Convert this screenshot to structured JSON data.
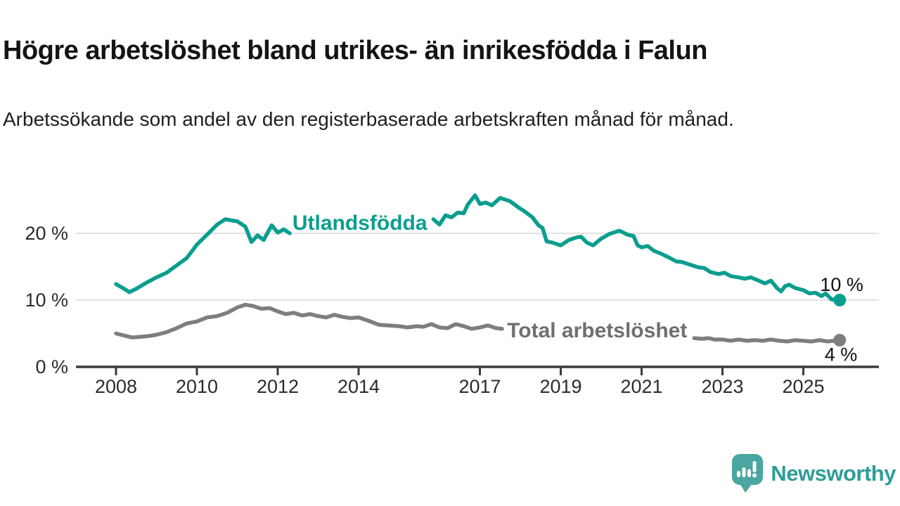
{
  "header": {
    "title": "Högre arbetslöshet bland utrikes- än inrikesfödda i Falun",
    "subtitle": "Arbetssökande som andel av den registerbaserade arbetskraften månad för månad."
  },
  "branding": {
    "name": "Newsworthy",
    "icon": "newsworthy-speech-bubble-bar-chart-icon",
    "icon_color": "#4AA6A1",
    "text_color": "#2E9D98"
  },
  "colors": {
    "grid": "#D8D8D8",
    "axis": "#3A3A3A",
    "tick_text": "#2B2B2B",
    "end_label_text": "#111111"
  },
  "chart_data": {
    "type": "line",
    "unit": "%",
    "ylim": [
      0,
      27
    ],
    "xlim_years": [
      2007.05,
      2026.85
    ],
    "grid": "horizontal-only",
    "legend_position": "inline-labels-on-lines",
    "x_ticks": [
      {
        "year": 2008,
        "label": "2008"
      },
      {
        "year": 2010,
        "label": "2010"
      },
      {
        "year": 2012,
        "label": "2012"
      },
      {
        "year": 2014,
        "label": "2014"
      },
      {
        "year": 2017,
        "label": "2017"
      },
      {
        "year": 2019,
        "label": "2019"
      },
      {
        "year": 2021,
        "label": "2021"
      },
      {
        "year": 2023,
        "label": "2023"
      },
      {
        "year": 2025,
        "label": "2025"
      }
    ],
    "y_ticks": [
      {
        "value": 20,
        "label": "20 %",
        "grid": true
      },
      {
        "value": 10,
        "label": "10 %",
        "grid": true
      },
      {
        "value": 0,
        "label": "0 %",
        "grid": false
      }
    ],
    "series": [
      {
        "name": "Utlandsfödda",
        "color": "#0B9E8E",
        "label": {
          "text": "Utlandsfödda",
          "year": 2014.03,
          "value": 21.6,
          "color": "#0B9E8E"
        },
        "end_dot": {
          "year": 2025.9,
          "value": 10.0
        },
        "end_label": {
          "text": "10 %",
          "year": 2025.95,
          "value": 12.3
        },
        "segments": [
          [
            [
              2008.0,
              12.4
            ],
            [
              2008.17,
              11.8
            ],
            [
              2008.33,
              11.2
            ],
            [
              2008.5,
              11.7
            ],
            [
              2008.75,
              12.6
            ],
            [
              2009.0,
              13.4
            ],
            [
              2009.25,
              14.1
            ],
            [
              2009.5,
              15.2
            ],
            [
              2009.75,
              16.3
            ],
            [
              2010.0,
              18.3
            ],
            [
              2010.25,
              19.8
            ],
            [
              2010.5,
              21.3
            ],
            [
              2010.7,
              22.1
            ],
            [
              2011.0,
              21.8
            ],
            [
              2011.2,
              21.0
            ],
            [
              2011.35,
              18.7
            ],
            [
              2011.5,
              19.7
            ],
            [
              2011.65,
              19.0
            ],
            [
              2011.85,
              21.2
            ],
            [
              2012.0,
              20.1
            ],
            [
              2012.15,
              20.6
            ],
            [
              2012.3,
              20.0
            ]
          ],
          [
            [
              2015.85,
              22.1
            ],
            [
              2016.0,
              21.3
            ],
            [
              2016.15,
              22.7
            ],
            [
              2016.3,
              22.4
            ],
            [
              2016.45,
              23.1
            ],
            [
              2016.6,
              23.0
            ],
            [
              2016.7,
              24.3
            ],
            [
              2016.88,
              25.7
            ],
            [
              2017.0,
              24.4
            ],
            [
              2017.15,
              24.6
            ],
            [
              2017.3,
              24.2
            ],
            [
              2017.5,
              25.3
            ],
            [
              2017.75,
              24.8
            ],
            [
              2017.95,
              23.9
            ],
            [
              2018.1,
              23.3
            ],
            [
              2018.3,
              22.4
            ],
            [
              2018.45,
              21.2
            ],
            [
              2018.55,
              20.8
            ],
            [
              2018.65,
              18.8
            ],
            [
              2018.8,
              18.6
            ],
            [
              2019.0,
              18.2
            ],
            [
              2019.2,
              19.0
            ],
            [
              2019.4,
              19.4
            ],
            [
              2019.5,
              19.5
            ],
            [
              2019.65,
              18.6
            ],
            [
              2019.8,
              18.2
            ],
            [
              2020.0,
              19.2
            ],
            [
              2020.2,
              19.9
            ],
            [
              2020.45,
              20.4
            ],
            [
              2020.65,
              19.8
            ],
            [
              2020.8,
              19.6
            ],
            [
              2020.9,
              18.2
            ],
            [
              2021.0,
              17.9
            ],
            [
              2021.15,
              18.1
            ],
            [
              2021.3,
              17.4
            ],
            [
              2021.5,
              16.9
            ],
            [
              2021.7,
              16.3
            ],
            [
              2021.85,
              15.8
            ],
            [
              2022.0,
              15.7
            ],
            [
              2022.2,
              15.3
            ],
            [
              2022.4,
              14.9
            ],
            [
              2022.55,
              14.8
            ],
            [
              2022.7,
              14.2
            ],
            [
              2022.9,
              13.9
            ],
            [
              2023.05,
              14.1
            ],
            [
              2023.2,
              13.6
            ],
            [
              2023.4,
              13.4
            ],
            [
              2023.55,
              13.2
            ],
            [
              2023.7,
              13.4
            ],
            [
              2023.9,
              12.9
            ],
            [
              2024.05,
              12.5
            ],
            [
              2024.2,
              12.9
            ],
            [
              2024.35,
              11.8
            ],
            [
              2024.45,
              11.3
            ],
            [
              2024.55,
              12.1
            ],
            [
              2024.65,
              12.3
            ],
            [
              2024.8,
              11.8
            ],
            [
              2025.0,
              11.5
            ],
            [
              2025.15,
              11.0
            ],
            [
              2025.3,
              11.1
            ],
            [
              2025.45,
              10.6
            ],
            [
              2025.55,
              11.0
            ],
            [
              2025.7,
              10.1
            ],
            [
              2025.9,
              10.0
            ]
          ]
        ]
      },
      {
        "name": "Total arbetslöshet",
        "color": "#7E7E7E",
        "label": {
          "text": "Total arbetslöshet",
          "year": 2019.9,
          "value": 5.45,
          "color": "#6F6F6F"
        },
        "end_dot": {
          "year": 2025.9,
          "value": 4.0
        },
        "end_label": {
          "text": "4 %",
          "year": 2025.93,
          "value": 1.85
        },
        "segments": [
          [
            [
              2008.0,
              5.0
            ],
            [
              2008.2,
              4.7
            ],
            [
              2008.4,
              4.4
            ],
            [
              2008.6,
              4.5
            ],
            [
              2008.8,
              4.6
            ],
            [
              2009.0,
              4.8
            ],
            [
              2009.25,
              5.2
            ],
            [
              2009.5,
              5.8
            ],
            [
              2009.75,
              6.5
            ],
            [
              2010.0,
              6.8
            ],
            [
              2010.25,
              7.4
            ],
            [
              2010.5,
              7.6
            ],
            [
              2010.75,
              8.1
            ],
            [
              2011.0,
              8.9
            ],
            [
              2011.2,
              9.3
            ],
            [
              2011.4,
              9.1
            ],
            [
              2011.6,
              8.7
            ],
            [
              2011.8,
              8.8
            ],
            [
              2012.0,
              8.3
            ],
            [
              2012.2,
              7.9
            ],
            [
              2012.4,
              8.1
            ],
            [
              2012.6,
              7.7
            ],
            [
              2012.8,
              7.9
            ],
            [
              2013.0,
              7.6
            ],
            [
              2013.2,
              7.4
            ],
            [
              2013.4,
              7.8
            ],
            [
              2013.6,
              7.5
            ],
            [
              2013.8,
              7.3
            ],
            [
              2014.0,
              7.4
            ],
            [
              2014.2,
              7.0
            ],
            [
              2014.5,
              6.3
            ],
            [
              2014.75,
              6.2
            ],
            [
              2015.0,
              6.1
            ],
            [
              2015.2,
              5.9
            ],
            [
              2015.45,
              6.1
            ],
            [
              2015.6,
              6.0
            ],
            [
              2015.8,
              6.4
            ],
            [
              2016.0,
              5.9
            ],
            [
              2016.2,
              5.8
            ],
            [
              2016.4,
              6.4
            ],
            [
              2016.6,
              6.1
            ],
            [
              2016.8,
              5.7
            ],
            [
              2017.0,
              5.9
            ],
            [
              2017.2,
              6.2
            ],
            [
              2017.4,
              5.8
            ],
            [
              2017.55,
              5.7
            ]
          ],
          [
            [
              2022.3,
              4.3
            ],
            [
              2022.5,
              4.2
            ],
            [
              2022.65,
              4.3
            ],
            [
              2022.8,
              4.1
            ],
            [
              2023.0,
              4.1
            ],
            [
              2023.2,
              3.9
            ],
            [
              2023.4,
              4.1
            ],
            [
              2023.6,
              3.9
            ],
            [
              2023.8,
              4.0
            ],
            [
              2024.0,
              3.9
            ],
            [
              2024.2,
              4.1
            ],
            [
              2024.4,
              3.9
            ],
            [
              2024.6,
              3.8
            ],
            [
              2024.8,
              4.0
            ],
            [
              2025.0,
              3.9
            ],
            [
              2025.2,
              3.8
            ],
            [
              2025.4,
              4.0
            ],
            [
              2025.6,
              3.8
            ],
            [
              2025.75,
              3.9
            ],
            [
              2025.9,
              4.0
            ]
          ]
        ]
      }
    ]
  }
}
